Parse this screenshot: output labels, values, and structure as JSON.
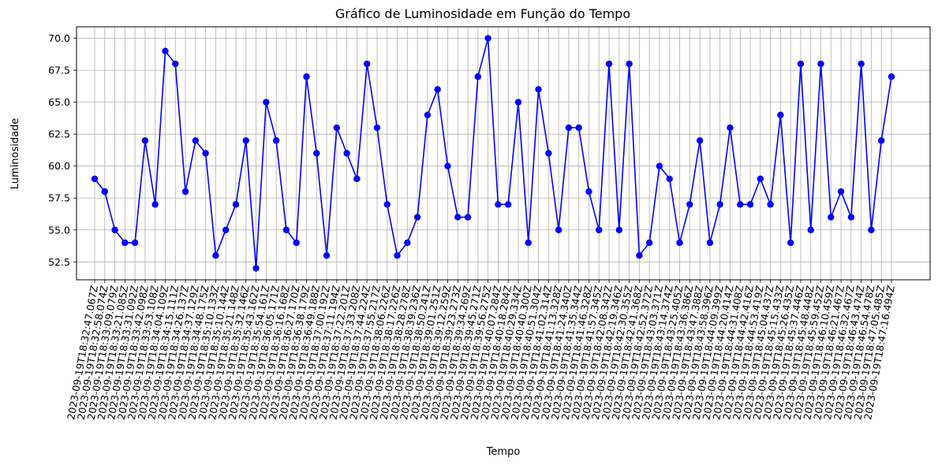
{
  "chart_data": {
    "type": "line",
    "title": "Gráfico de Luminosidade em Função do Tempo",
    "xlabel": "Tempo",
    "ylabel": "Luminosidade",
    "ylim": [
      51.1,
      70.9
    ],
    "yticks": [
      "52.5",
      "55.0",
      "57.5",
      "60.0",
      "62.5",
      "65.0",
      "67.5",
      "70.0"
    ],
    "grid": true,
    "colors": {
      "line": "#0000ff",
      "marker": "#0000ff",
      "grid": "#b0b0b0"
    },
    "x": [
      "2023-09-19T18:32:47.067Z",
      "2023-09-19T18:32:58.074Z",
      "2023-09-19T18:33:09.079Z",
      "2023-09-19T18:33:21.085Z",
      "2023-09-19T18:33:31.092Z",
      "2023-09-19T18:33:42.098Z",
      "2023-09-19T18:33:53.108Z",
      "2023-09-19T18:34:04.109Z",
      "2023-09-19T18:34:15.111Z",
      "2023-09-19T18:34:26.137Z",
      "2023-09-19T18:34:37.129Z",
      "2023-09-19T18:34:48.175Z",
      "2023-09-19T18:35:10.133Z",
      "2023-09-19T18:35:10.144Z",
      "2023-09-19T18:35:21.148Z",
      "2023-09-19T18:35:32.146Z",
      "2023-09-19T18:35:43.162Z",
      "2023-09-19T18:35:54.161Z",
      "2023-09-19T18:36:05.171Z",
      "2023-09-19T18:36:16.168Z",
      "2023-09-19T18:36:27.170Z",
      "2023-09-19T18:36:38.179Z",
      "2023-09-19T18:36:49.188Z",
      "2023-09-19T18:37:00.192Z",
      "2023-09-19T18:37:11.194Z",
      "2023-09-19T18:37:22.201Z",
      "2023-09-19T18:37:33.208Z",
      "2023-09-19T18:37:44.224Z",
      "2023-09-19T18:37:55.217Z",
      "2023-09-19T18:38:06.226Z",
      "2023-09-19T18:38:17.226Z",
      "2023-09-19T18:38:28.278Z",
      "2023-09-19T18:38:39.236Z",
      "2023-09-19T18:38:50.241Z",
      "2023-09-19T18:39:01.251Z",
      "2023-09-19T18:39:12.259Z",
      "2023-09-19T18:39:23.273Z",
      "2023-09-19T18:39:34.269Z",
      "2023-09-19T18:39:45.271Z",
      "2023-09-19T18:39:56.275Z",
      "2023-09-19T18:40:07.284Z",
      "2023-09-19T18:40:18.284Z",
      "2023-09-19T18:40:29.334Z",
      "2023-09-19T18:40:40.300Z",
      "2023-09-19T18:40:51.304Z",
      "2023-09-19T18:41:02.314Z",
      "2023-09-19T18:41:13.328Z",
      "2023-09-19T18:41:24.340Z",
      "2023-09-19T18:41:35.344Z",
      "2023-09-19T18:41:46.328Z",
      "2023-09-19T18:41:57.345Z",
      "2023-09-19T18:42:08.342Z",
      "2023-09-19T18:42:19.346Z",
      "2023-09-19T18:42:30.355Z",
      "2023-09-19T18:42:41.368Z",
      "2023-09-19T18:42:52.372Z",
      "2023-09-19T18:43:03.371Z",
      "2023-09-19T18:43:14.374Z",
      "2023-09-19T18:43:25.405Z",
      "2023-09-19T18:43:36.386Z",
      "2023-09-19T18:43:47.388Z",
      "2023-09-19T18:43:58.396Z",
      "2023-09-19T18:44:09.399Z",
      "2023-09-19T18:44:20.414Z",
      "2023-09-19T18:44:31.408Z",
      "2023-09-19T18:44:42.416Z",
      "2023-09-19T18:44:53.419Z",
      "2023-09-19T18:45:04.437Z",
      "2023-09-19T18:45:15.433Z",
      "2023-09-19T18:45:26.435Z",
      "2023-09-19T18:45:37.446Z",
      "2023-09-19T18:45:48.448Z",
      "2023-09-19T18:45:59.452Z",
      "2023-09-19T18:46:10.459Z",
      "2023-09-19T18:46:21.467Z",
      "2023-09-19T18:46:32.467Z",
      "2023-09-19T18:46:43.474Z",
      "2023-09-19T18:46:54.478Z",
      "2023-09-19T18:47:05.485Z",
      "2023-09-19T18:47:16.494Z"
    ],
    "series": [
      {
        "values": [
          59,
          58,
          55,
          54,
          54,
          62,
          57,
          69,
          68,
          58,
          62,
          61,
          53,
          55,
          57,
          62,
          52,
          65,
          62,
          55,
          54,
          67,
          61,
          53,
          63,
          61,
          59,
          68,
          63,
          57,
          53,
          54,
          56,
          64,
          66,
          60,
          56,
          56,
          67,
          70,
          57,
          57,
          65,
          54,
          66,
          61,
          55,
          63,
          63,
          58,
          55,
          68,
          55,
          68,
          53,
          54,
          60,
          59,
          54,
          57,
          62,
          54,
          57,
          63,
          57,
          57,
          59,
          57,
          64,
          54,
          68,
          55,
          68,
          56,
          58,
          56,
          68,
          55,
          62,
          67
        ]
      }
    ]
  }
}
